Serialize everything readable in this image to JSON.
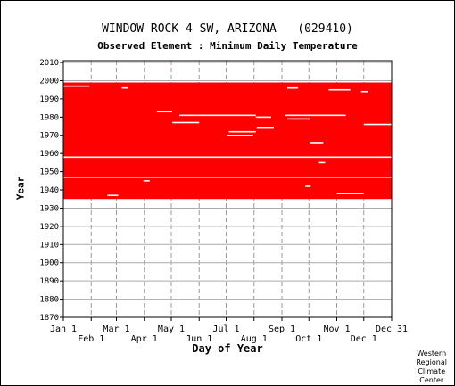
{
  "chart_data": {
    "type": "heatmap",
    "title": "WINDOW ROCK 4 SW, ARIZONA   (029410)",
    "subtitle": "Observed Element : Minimum Daily Temperature",
    "xlabel": "Day of Year",
    "ylabel": "Year",
    "x_ticks_row1": [
      "Jan 1",
      "Mar 1",
      "May 1",
      "Jul 1",
      "Sep 1",
      "Nov 1",
      "Dec 31"
    ],
    "x_ticks_row2": [
      "Feb 1",
      "Apr 1",
      "Jun 1",
      "Aug 1",
      "Oct 1",
      "Dec 1"
    ],
    "y_ticks": [
      1870,
      1880,
      1890,
      1900,
      1910,
      1920,
      1930,
      1940,
      1950,
      1960,
      1970,
      1980,
      1990,
      2000,
      2010
    ],
    "xlim": [
      1,
      366
    ],
    "ylim": [
      1870,
      2011
    ],
    "record_years": [
      1936,
      1998
    ],
    "grid": true,
    "fill_color": "#ff0000",
    "gap_lines": [
      {
        "year": 1958,
        "day_start": 1,
        "day_end": 366
      },
      {
        "year": 1947,
        "day_start": 1,
        "day_end": 366
      },
      {
        "year": 1997,
        "day_start": 1,
        "day_end": 30
      },
      {
        "year": 1996,
        "day_start": 66,
        "day_end": 73
      },
      {
        "year": 1996,
        "day_start": 250,
        "day_end": 262
      },
      {
        "year": 1995,
        "day_start": 296,
        "day_end": 320
      },
      {
        "year": 1994,
        "day_start": 332,
        "day_end": 340
      },
      {
        "year": 1983,
        "day_start": 105,
        "day_end": 122
      },
      {
        "year": 1981,
        "day_start": 130,
        "day_end": 215
      },
      {
        "year": 1981,
        "day_start": 248,
        "day_end": 315
      },
      {
        "year": 1980,
        "day_start": 215,
        "day_end": 232
      },
      {
        "year": 1979,
        "day_start": 250,
        "day_end": 275
      },
      {
        "year": 1977,
        "day_start": 122,
        "day_end": 152
      },
      {
        "year": 1976,
        "day_start": 335,
        "day_end": 366
      },
      {
        "year": 1974,
        "day_start": 216,
        "day_end": 235
      },
      {
        "year": 1972,
        "day_start": 185,
        "day_end": 215
      },
      {
        "year": 1970,
        "day_start": 183,
        "day_end": 212
      },
      {
        "year": 1966,
        "day_start": 275,
        "day_end": 290
      },
      {
        "year": 1955,
        "day_start": 285,
        "day_end": 292
      },
      {
        "year": 1945,
        "day_start": 90,
        "day_end": 97
      },
      {
        "year": 1942,
        "day_start": 270,
        "day_end": 276
      },
      {
        "year": 1938,
        "day_start": 305,
        "day_end": 335
      },
      {
        "year": 1937,
        "day_start": 50,
        "day_end": 62
      }
    ]
  },
  "credit": [
    "Western",
    "Regional",
    "Climate",
    "Center"
  ]
}
